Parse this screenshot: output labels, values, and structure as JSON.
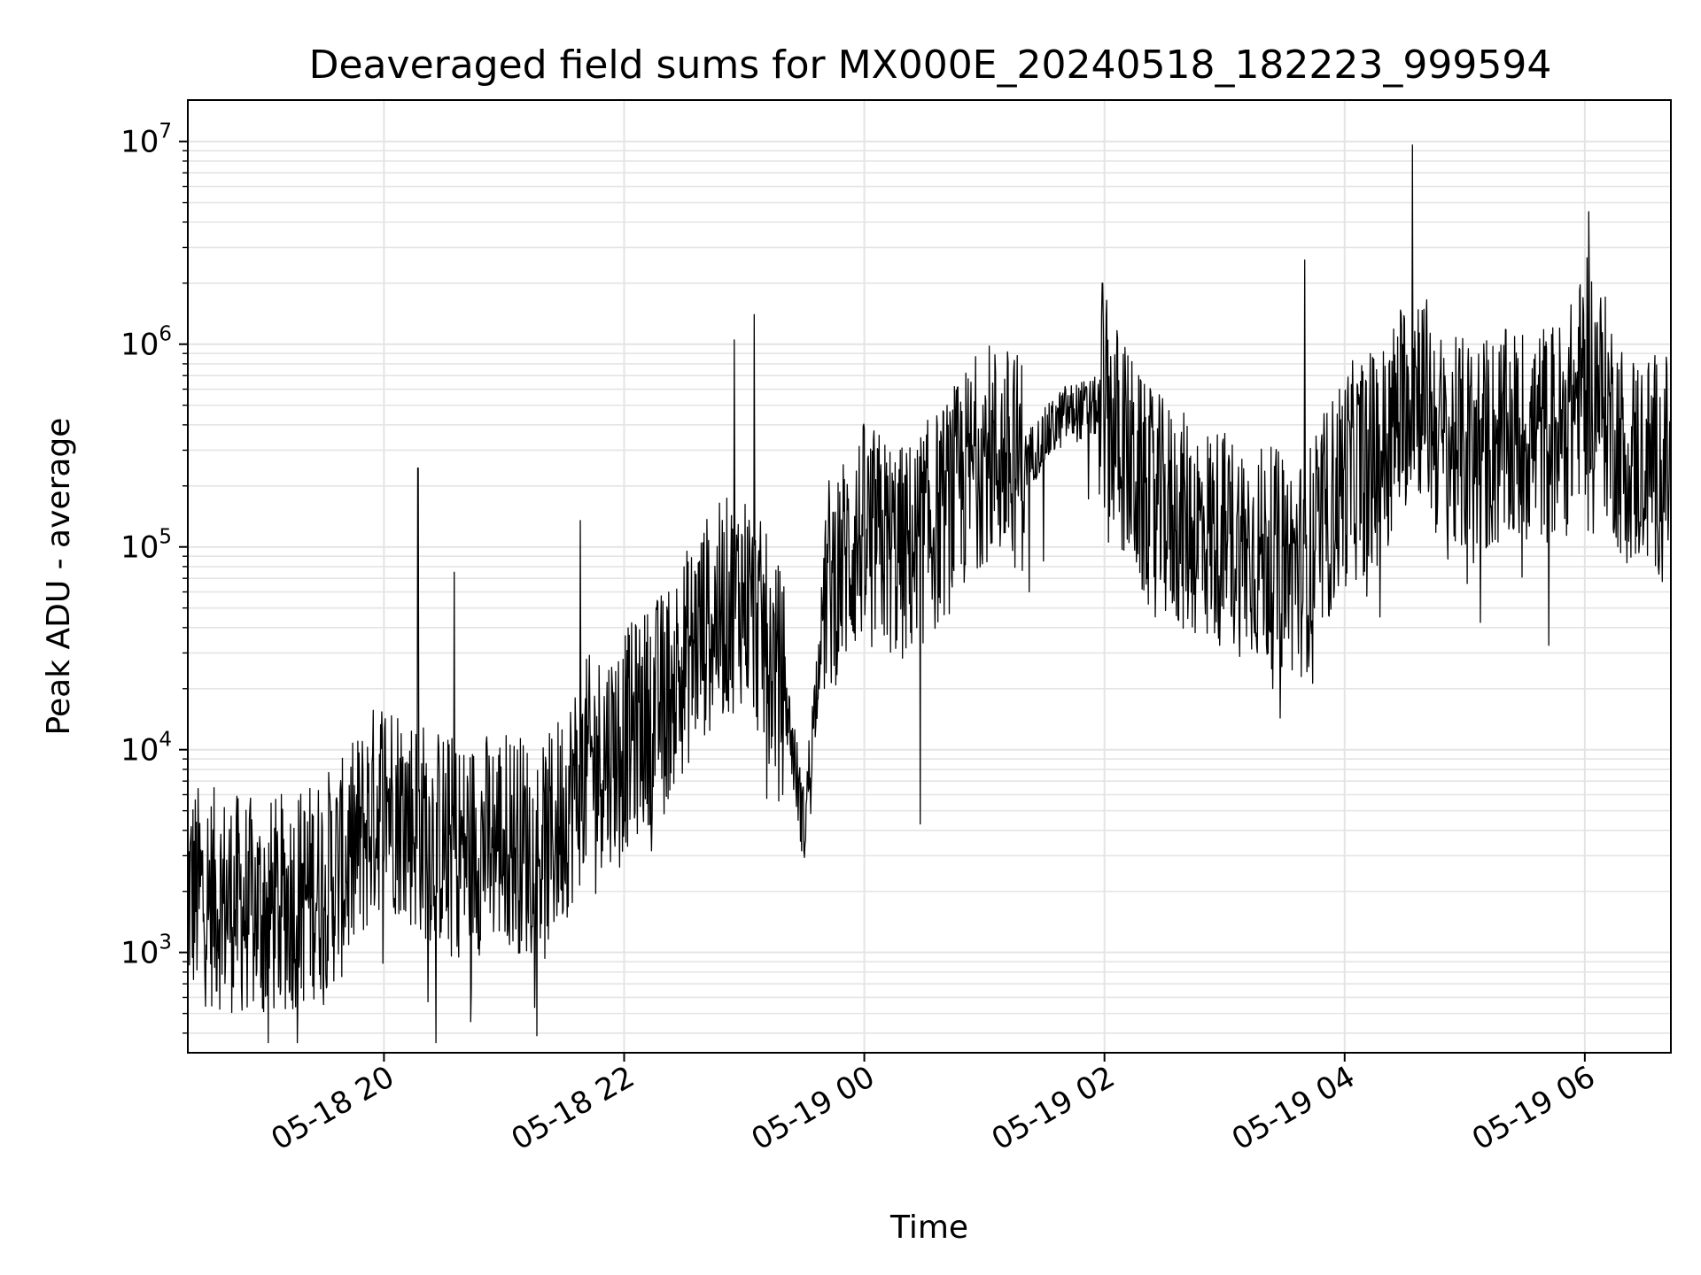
{
  "chart_data": {
    "type": "line",
    "title": "Deaveraged field sums for MX000E_20240518_182223_999594",
    "xlabel": "Time",
    "ylabel": "Peak ADU - average",
    "yscale": "log",
    "xlim": [
      "05-18 18:22",
      "05-19 06:43"
    ],
    "ylim": [
      320,
      16000000
    ],
    "grid": true,
    "line_color": "#000000",
    "x_ticks": [
      {
        "time": "05-18 20:00",
        "label": "05-18 20"
      },
      {
        "time": "05-18 22:00",
        "label": "05-18 22"
      },
      {
        "time": "05-19 00:00",
        "label": "05-19 00"
      },
      {
        "time": "05-19 02:00",
        "label": "05-19 02"
      },
      {
        "time": "05-19 04:00",
        "label": "05-19 04"
      },
      {
        "time": "05-19 06:00",
        "label": "05-19 06"
      }
    ],
    "y_ticks": [
      {
        "value": 1000,
        "base": "10",
        "exp": "3"
      },
      {
        "value": 10000,
        "base": "10",
        "exp": "4"
      },
      {
        "value": 100000,
        "base": "10",
        "exp": "5"
      },
      {
        "value": 1000000,
        "base": "10",
        "exp": "6"
      },
      {
        "value": 10000000,
        "base": "10",
        "exp": "7"
      }
    ],
    "series": [
      {
        "x": [
          "05-18 18:22",
          "05-18 18:40",
          "05-18 19:00",
          "05-18 19:20",
          "05-18 19:40",
          "05-18 20:00",
          "05-18 20:20",
          "05-18 20:40",
          "05-18 21:00",
          "05-18 21:20",
          "05-18 21:40",
          "05-18 22:00",
          "05-18 22:20",
          "05-18 22:40",
          "05-18 23:00",
          "05-18 23:20",
          "05-18 23:30",
          "05-18 23:40",
          "05-19 00:00",
          "05-19 00:20",
          "05-19 00:40",
          "05-19 01:00",
          "05-19 01:20",
          "05-19 01:40",
          "05-19 02:00",
          "05-19 02:20",
          "05-19 02:40",
          "05-19 03:00",
          "05-19 03:20",
          "05-19 03:40",
          "05-19 04:00",
          "05-19 04:20",
          "05-19 04:35",
          "05-19 04:50",
          "05-19 05:10",
          "05-19 05:30",
          "05-19 05:50",
          "05-19 06:02",
          "05-19 06:20",
          "05-19 06:43"
        ],
        "values": [
          2000,
          1800,
          1600,
          1900,
          2600,
          6000,
          4000,
          3200,
          3800,
          3000,
          8000,
          11000,
          18000,
          40000,
          60000,
          20000,
          4000,
          60000,
          120000,
          90000,
          150000,
          300000,
          260000,
          450000,
          500000,
          180000,
          130000,
          110000,
          90000,
          80000,
          220000,
          300000,
          700000,
          300000,
          320000,
          350000,
          380000,
          800000,
          280000,
          250000
        ],
        "spikes": [
          {
            "x": "05-18 20:17",
            "value": 245000
          },
          {
            "x": "05-18 20:35",
            "value": 75000
          },
          {
            "x": "05-18 21:38",
            "value": 135000
          },
          {
            "x": "05-18 22:55",
            "value": 1050000
          },
          {
            "x": "05-18 23:05",
            "value": 1400000
          },
          {
            "x": "05-19 00:28",
            "value": 4300
          },
          {
            "x": "05-19 01:59",
            "value": 2000000
          },
          {
            "x": "05-19 03:40",
            "value": 2600000
          },
          {
            "x": "05-19 04:34",
            "value": 9600000
          },
          {
            "x": "05-19 06:02",
            "value": 4500000
          }
        ]
      }
    ]
  }
}
